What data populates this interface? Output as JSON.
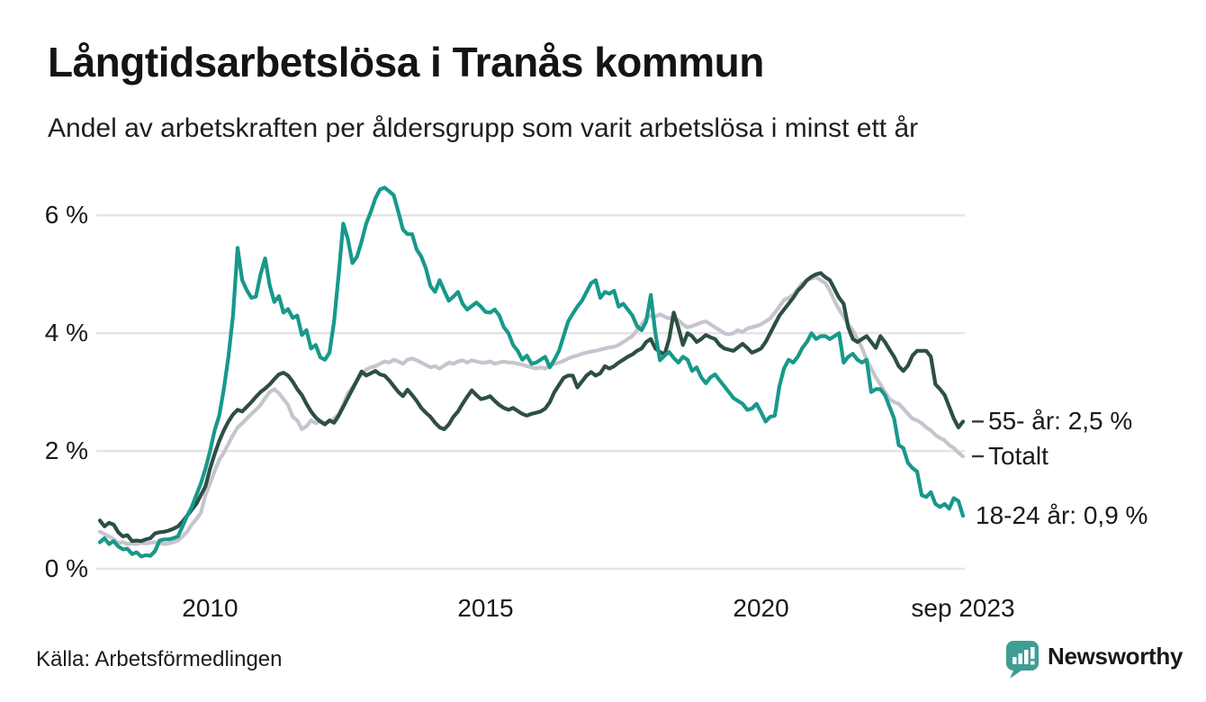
{
  "title": "Långtidsarbetslösa i Tranås kommun",
  "subtitle": "Andel av arbetskraften per åldersgrupp som varit arbetslösa i minst ett år",
  "source": "Källa: Arbetsförmedlingen",
  "branding": {
    "name": "Newsworthy",
    "color": "#3f9e94"
  },
  "chart_data": {
    "type": "line",
    "x_start": "jan 2008",
    "x_end": "sep 2023",
    "points_per_series": 189,
    "grid": "horizontal",
    "ylim": [
      0,
      6.8
    ],
    "gridline_color": "#e4e4e4",
    "y_ticks": [
      {
        "label": "0 %",
        "value": 0
      },
      {
        "label": "2 %",
        "value": 2
      },
      {
        "label": "4 %",
        "value": 4
      },
      {
        "label": "6 %",
        "value": 6
      }
    ],
    "x_ticks": [
      {
        "label": "2010",
        "t": 24
      },
      {
        "label": "2015",
        "t": 84
      },
      {
        "label": "2020",
        "t": 144
      },
      {
        "label": "sep 2023",
        "t": 188
      }
    ],
    "series": [
      {
        "name": "Totalt",
        "end_label": "Totalt",
        "end_value": 1.9,
        "color": "#c6c4ce",
        "end_tick": true,
        "values": [
          0.63,
          0.59,
          0.55,
          0.5,
          0.44,
          0.45,
          0.42,
          0.43,
          0.42,
          0.44,
          0.43,
          0.44,
          0.45,
          0.44,
          0.42,
          0.43,
          0.45,
          0.48,
          0.55,
          0.63,
          0.75,
          0.84,
          0.95,
          1.25,
          1.45,
          1.66,
          1.85,
          1.97,
          2.12,
          2.27,
          2.4,
          2.47,
          2.55,
          2.63,
          2.7,
          2.78,
          2.9,
          3.0,
          3.05,
          2.98,
          2.88,
          2.78,
          2.58,
          2.52,
          2.37,
          2.42,
          2.52,
          2.47,
          2.52,
          2.47,
          2.5,
          2.55,
          2.63,
          2.78,
          2.98,
          3.08,
          3.2,
          3.3,
          3.38,
          3.42,
          3.44,
          3.48,
          3.52,
          3.5,
          3.55,
          3.52,
          3.48,
          3.55,
          3.57,
          3.54,
          3.5,
          3.46,
          3.42,
          3.44,
          3.4,
          3.45,
          3.5,
          3.48,
          3.52,
          3.54,
          3.5,
          3.54,
          3.52,
          3.5,
          3.5,
          3.52,
          3.48,
          3.5,
          3.52,
          3.5,
          3.5,
          3.48,
          3.47,
          3.44,
          3.42,
          3.4,
          3.42,
          3.4,
          3.45,
          3.48,
          3.5,
          3.53,
          3.57,
          3.6,
          3.62,
          3.65,
          3.67,
          3.69,
          3.7,
          3.72,
          3.74,
          3.76,
          3.77,
          3.8,
          3.85,
          3.9,
          3.95,
          4.05,
          4.15,
          4.25,
          4.3,
          4.28,
          4.32,
          4.28,
          4.25,
          4.28,
          4.22,
          4.15,
          4.1,
          4.12,
          4.15,
          4.18,
          4.2,
          4.15,
          4.1,
          4.05,
          4.0,
          3.98,
          4.0,
          4.05,
          4.02,
          4.08,
          4.1,
          4.12,
          4.15,
          4.2,
          4.25,
          4.35,
          4.45,
          4.56,
          4.6,
          4.65,
          4.75,
          4.85,
          4.9,
          4.93,
          4.95,
          4.9,
          4.85,
          4.72,
          4.55,
          4.4,
          4.28,
          4.15,
          4.05,
          3.9,
          3.75,
          3.55,
          3.4,
          3.25,
          3.13,
          3.0,
          2.88,
          2.83,
          2.8,
          2.72,
          2.63,
          2.55,
          2.52,
          2.47,
          2.4,
          2.35,
          2.27,
          2.22,
          2.18,
          2.1,
          2.05,
          1.97,
          1.91
        ]
      },
      {
        "name": "55- år",
        "end_label": "55- år: 2,5 %",
        "end_value": 2.5,
        "color": "#2d4f44",
        "end_tick": true,
        "values": [
          0.82,
          0.72,
          0.78,
          0.75,
          0.62,
          0.55,
          0.57,
          0.47,
          0.48,
          0.47,
          0.5,
          0.52,
          0.6,
          0.62,
          0.63,
          0.65,
          0.68,
          0.72,
          0.8,
          0.9,
          1.0,
          1.1,
          1.25,
          1.4,
          1.7,
          1.95,
          2.17,
          2.35,
          2.5,
          2.62,
          2.7,
          2.67,
          2.75,
          2.83,
          2.92,
          3.0,
          3.06,
          3.13,
          3.22,
          3.3,
          3.33,
          3.28,
          3.18,
          3.05,
          2.95,
          2.8,
          2.67,
          2.57,
          2.5,
          2.45,
          2.52,
          2.48,
          2.6,
          2.75,
          2.9,
          3.05,
          3.2,
          3.35,
          3.28,
          3.32,
          3.36,
          3.3,
          3.28,
          3.2,
          3.1,
          3.0,
          2.93,
          3.04,
          2.95,
          2.85,
          2.73,
          2.65,
          2.58,
          2.48,
          2.4,
          2.37,
          2.45,
          2.58,
          2.67,
          2.8,
          2.92,
          3.03,
          2.95,
          2.88,
          2.9,
          2.93,
          2.85,
          2.78,
          2.73,
          2.7,
          2.73,
          2.68,
          2.63,
          2.6,
          2.63,
          2.65,
          2.67,
          2.72,
          2.83,
          3.0,
          3.12,
          3.24,
          3.28,
          3.28,
          3.08,
          3.18,
          3.28,
          3.34,
          3.28,
          3.32,
          3.44,
          3.4,
          3.44,
          3.5,
          3.55,
          3.6,
          3.64,
          3.7,
          3.74,
          3.85,
          3.9,
          3.74,
          3.68,
          3.64,
          3.9,
          4.35,
          4.1,
          3.8,
          4.0,
          3.95,
          3.85,
          3.9,
          3.97,
          3.93,
          3.9,
          3.8,
          3.74,
          3.72,
          3.7,
          3.76,
          3.82,
          3.75,
          3.67,
          3.7,
          3.74,
          3.85,
          4.0,
          4.15,
          4.3,
          4.4,
          4.5,
          4.6,
          4.72,
          4.8,
          4.9,
          4.96,
          5.0,
          5.02,
          4.95,
          4.9,
          4.75,
          4.6,
          4.5,
          4.1,
          3.9,
          3.85,
          3.9,
          3.95,
          3.85,
          3.75,
          3.95,
          3.85,
          3.72,
          3.6,
          3.44,
          3.36,
          3.45,
          3.62,
          3.7,
          3.7,
          3.7,
          3.6,
          3.13,
          3.05,
          2.95,
          2.75,
          2.55,
          2.4,
          2.5
        ]
      },
      {
        "name": "18-24 år",
        "end_label": "18-24 år: 0,9 %",
        "end_value": 0.9,
        "color": "#17998a",
        "end_tick": false,
        "values": [
          0.45,
          0.52,
          0.42,
          0.47,
          0.38,
          0.33,
          0.34,
          0.25,
          0.28,
          0.21,
          0.23,
          0.22,
          0.3,
          0.48,
          0.5,
          0.5,
          0.52,
          0.55,
          0.72,
          0.9,
          1.05,
          1.25,
          1.45,
          1.7,
          2.0,
          2.35,
          2.6,
          3.05,
          3.6,
          4.3,
          5.45,
          4.9,
          4.73,
          4.6,
          4.62,
          5.0,
          5.27,
          4.81,
          4.53,
          4.63,
          4.35,
          4.41,
          4.26,
          4.3,
          3.97,
          4.05,
          3.74,
          3.8,
          3.59,
          3.55,
          3.67,
          4.2,
          5.0,
          5.86,
          5.6,
          5.19,
          5.3,
          5.56,
          5.86,
          6.06,
          6.29,
          6.44,
          6.47,
          6.41,
          6.34,
          6.06,
          5.76,
          5.68,
          5.68,
          5.42,
          5.3,
          5.1,
          4.8,
          4.7,
          4.9,
          4.72,
          4.55,
          4.62,
          4.7,
          4.5,
          4.4,
          4.46,
          4.52,
          4.45,
          4.36,
          4.35,
          4.4,
          4.3,
          4.1,
          4.0,
          3.8,
          3.7,
          3.55,
          3.62,
          3.48,
          3.5,
          3.55,
          3.6,
          3.42,
          3.55,
          3.7,
          3.95,
          4.2,
          4.33,
          4.45,
          4.55,
          4.7,
          4.85,
          4.9,
          4.6,
          4.7,
          4.67,
          4.72,
          4.45,
          4.5,
          4.4,
          4.3,
          4.12,
          4.05,
          4.2,
          4.65,
          4.0,
          3.54,
          3.62,
          3.68,
          3.58,
          3.5,
          3.6,
          3.55,
          3.36,
          3.42,
          3.25,
          3.15,
          3.25,
          3.3,
          3.2,
          3.1,
          3.0,
          2.9,
          2.85,
          2.8,
          2.7,
          2.72,
          2.8,
          2.66,
          2.5,
          2.58,
          2.6,
          3.1,
          3.4,
          3.55,
          3.5,
          3.6,
          3.75,
          3.85,
          4.0,
          3.9,
          3.95,
          3.95,
          3.9,
          3.95,
          4.0,
          3.5,
          3.6,
          3.65,
          3.55,
          3.5,
          3.55,
          3.0,
          3.05,
          3.05,
          2.95,
          2.75,
          2.55,
          2.1,
          2.05,
          1.8,
          1.71,
          1.65,
          1.25,
          1.22,
          1.3,
          1.1,
          1.05,
          1.1,
          1.02,
          1.2,
          1.15,
          0.9
        ]
      }
    ]
  }
}
